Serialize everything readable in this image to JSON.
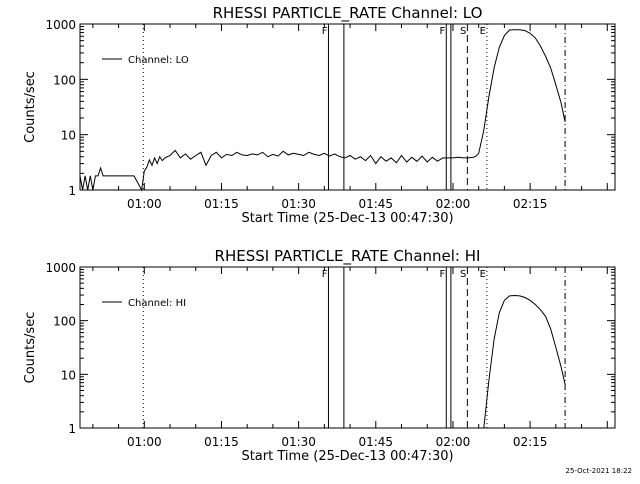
{
  "footer_timestamp": "25-Oct-2021 18:22",
  "panels": [
    {
      "title": "RHESSI PARTICLE_RATE Channel: LO",
      "legend": "Channel: LO"
    },
    {
      "title": "RHESSI PARTICLE_RATE Channel: HI",
      "legend": "Channel: HI"
    }
  ],
  "chart_data": [
    {
      "type": "line",
      "title": "RHESSI PARTICLE_RATE Channel: LO",
      "xlabel": "Start Time (25-Dec-13 00:47:30)",
      "ylabel": "Counts/sec",
      "y_scale": "log",
      "ylim": [
        1,
        1000
      ],
      "xlim_minutes": [
        47.5,
        151.5
      ],
      "x_ticks": [
        {
          "t": 60,
          "label": "01:00"
        },
        {
          "t": 75,
          "label": "01:15"
        },
        {
          "t": 90,
          "label": "01:30"
        },
        {
          "t": 105,
          "label": "01:45"
        },
        {
          "t": 120,
          "label": "02:00"
        },
        {
          "t": 135,
          "label": "02:15"
        }
      ],
      "y_ticks": [
        {
          "v": 1,
          "label": "1"
        },
        {
          "v": 10,
          "label": "10"
        },
        {
          "v": 100,
          "label": "100"
        },
        {
          "v": 1000,
          "label": "1000"
        }
      ],
      "legend_placement": "top-left",
      "grid": false,
      "series": [
        {
          "name": "Channel: LO",
          "x": [
            47.5,
            48,
            48.5,
            49,
            49.5,
            50,
            50.5,
            51,
            51.5,
            52,
            54,
            56,
            58,
            59.5,
            60,
            60.5,
            61,
            61.5,
            62,
            62.5,
            63,
            63.5,
            64,
            65,
            66,
            67,
            68,
            69,
            70,
            71,
            72,
            73,
            74,
            75,
            76,
            77,
            78,
            79,
            80,
            81,
            82,
            83,
            84,
            85,
            86,
            87,
            88,
            89,
            90,
            91,
            92,
            93,
            94,
            95,
            96,
            97,
            98,
            99,
            100,
            101,
            102,
            103,
            104,
            105,
            106,
            107,
            108,
            109,
            110,
            111,
            112,
            113,
            114,
            115,
            116,
            117,
            118,
            119,
            120,
            121,
            122,
            123,
            124,
            124.5,
            125,
            126,
            127,
            128,
            129,
            130,
            131,
            132,
            133,
            134,
            135,
            136,
            137,
            138,
            139,
            140,
            141,
            141.8
          ],
          "y": [
            1.8,
            1,
            1.8,
            1,
            1.8,
            1,
            1.8,
            1.8,
            2.5,
            1.8,
            1.8,
            1.8,
            1.8,
            1,
            2.2,
            2.6,
            3.5,
            2.8,
            3.8,
            3,
            4,
            3.4,
            3.8,
            4.2,
            5.2,
            3.8,
            4.5,
            3.6,
            4.2,
            4.8,
            2.8,
            4.2,
            4.8,
            3.8,
            4.4,
            4.2,
            4.8,
            4.3,
            4.2,
            4.5,
            4.3,
            4.8,
            4,
            4.4,
            4.1,
            5,
            4.3,
            4.6,
            4.4,
            4.2,
            4.8,
            4.4,
            4.2,
            4.6,
            4.1,
            4.5,
            4,
            3.8,
            4.2,
            3.6,
            4,
            3.4,
            4.2,
            3,
            4,
            3.3,
            3.8,
            3.1,
            4.2,
            3.2,
            3.9,
            3.3,
            4.1,
            3.2,
            3.9,
            3.3,
            3.8,
            3.8,
            3.8,
            3.9,
            3.8,
            3.8,
            3.9,
            4.1,
            4.6,
            12,
            50,
            160,
            380,
            620,
            780,
            790,
            785,
            760,
            680,
            560,
            400,
            260,
            160,
            80,
            38,
            17
          ]
        }
      ],
      "annotations": [
        {
          "label": "F",
          "t": 95.8
        },
        {
          "label": "F",
          "t": 118.7
        },
        {
          "label": "S",
          "t": 122.8
        },
        {
          "label": "E",
          "t": 126.6
        }
      ]
    },
    {
      "type": "line",
      "title": "RHESSI PARTICLE_RATE Channel: HI",
      "xlabel": "Start Time (25-Dec-13 00:47:30)",
      "ylabel": "Counts/sec",
      "y_scale": "log",
      "ylim": [
        1,
        1000
      ],
      "xlim_minutes": [
        47.5,
        151.5
      ],
      "x_ticks": [
        {
          "t": 60,
          "label": "01:00"
        },
        {
          "t": 75,
          "label": "01:15"
        },
        {
          "t": 90,
          "label": "01:30"
        },
        {
          "t": 105,
          "label": "01:45"
        },
        {
          "t": 120,
          "label": "02:00"
        },
        {
          "t": 135,
          "label": "02:15"
        }
      ],
      "y_ticks": [
        {
          "v": 1,
          "label": "1"
        },
        {
          "v": 10,
          "label": "10"
        },
        {
          "v": 100,
          "label": "100"
        },
        {
          "v": 1000,
          "label": "1000"
        }
      ],
      "legend_placement": "top-left",
      "grid": false,
      "series": [
        {
          "name": "Channel: HI",
          "x": [
            126,
            127,
            128,
            129,
            130,
            131,
            132,
            133,
            134,
            135,
            136,
            137,
            138,
            139,
            140,
            141,
            141.8
          ],
          "y": [
            1,
            8,
            45,
            140,
            240,
            290,
            295,
            290,
            270,
            240,
            200,
            160,
            120,
            70,
            32,
            14,
            6.5
          ]
        }
      ],
      "annotations": [
        {
          "label": "F",
          "t": 95.8
        },
        {
          "label": "F",
          "t": 118.7
        },
        {
          "label": "S",
          "t": 122.8
        },
        {
          "label": "E",
          "t": 126.6
        }
      ]
    }
  ]
}
